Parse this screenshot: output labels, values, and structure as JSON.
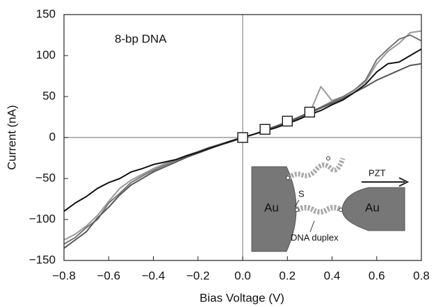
{
  "chart_data": {
    "type": "line",
    "x_label": "Bias Voltage (V)",
    "y_label": "Current (nA)",
    "annotation": "8-bp DNA",
    "inset": {
      "left": "Au",
      "right": "Au",
      "sulfur": "S",
      "duplex": "DNA duplex",
      "piezo": "PZT"
    },
    "x": [
      -0.8,
      -0.75,
      -0.7,
      -0.65,
      -0.6,
      -0.55,
      -0.5,
      -0.45,
      -0.4,
      -0.35,
      -0.3,
      -0.25,
      -0.2,
      -0.15,
      -0.1,
      -0.05,
      0,
      0.05,
      0.1,
      0.15,
      0.2,
      0.25,
      0.3,
      0.35,
      0.4,
      0.45,
      0.5,
      0.55,
      0.6,
      0.65,
      0.7,
      0.75,
      0.8
    ],
    "series": [
      {
        "color": "#999999",
        "values": [
          -125,
          -118,
          -108,
          -95,
          -78,
          -62,
          -52,
          -45,
          -38,
          -32,
          -27,
          -22,
          -17,
          -12,
          -8,
          -4,
          0,
          4,
          8,
          13,
          18,
          23,
          30,
          62,
          45,
          50,
          58,
          68,
          90,
          105,
          115,
          128,
          130
        ]
      },
      {
        "color": "#777777",
        "values": [
          -130,
          -122,
          -110,
          -100,
          -80,
          -68,
          -55,
          -47,
          -40,
          -34,
          -28,
          -23,
          -18,
          -13,
          -8,
          -4,
          0,
          4,
          9,
          14,
          19,
          25,
          31,
          37,
          44,
          50,
          58,
          70,
          95,
          108,
          120,
          125,
          118
        ]
      },
      {
        "color": "#555555",
        "values": [
          -135,
          -125,
          -115,
          -98,
          -85,
          -70,
          -58,
          -50,
          -42,
          -36,
          -30,
          -24,
          -19,
          -14,
          -9,
          -5,
          0,
          4,
          9,
          14,
          19,
          24,
          30,
          36,
          42,
          48,
          55,
          62,
          70,
          76,
          82,
          88,
          90
        ]
      },
      {
        "color": "#111111",
        "values": [
          -90,
          -80,
          -72,
          -62,
          -55,
          -50,
          -42,
          -38,
          -33,
          -30,
          -27,
          -22,
          -18,
          -13,
          -9,
          -4,
          0,
          4,
          8,
          12,
          17,
          22,
          28,
          33,
          40,
          46,
          55,
          65,
          80,
          90,
          92,
          100,
          108
        ]
      }
    ],
    "markers": {
      "x": [
        0,
        0.1,
        0.2,
        0.3
      ],
      "values": [
        0,
        10,
        20,
        31
      ]
    },
    "xlim": [
      -0.8,
      0.8
    ],
    "ylim": [
      -150,
      150
    ],
    "xticks": [
      {
        "value": -0.8,
        "label": "−0.8"
      },
      {
        "value": -0.6,
        "label": "−0.6"
      },
      {
        "value": -0.4,
        "label": "−0.4"
      },
      {
        "value": -0.2,
        "label": "−0.2"
      },
      {
        "value": 0,
        "label": "0.0"
      },
      0.2,
      0.4,
      0.6,
      0.8
    ],
    "yticks": [
      {
        "value": -150,
        "label": "−150"
      },
      {
        "value": -100,
        "label": "−100"
      },
      {
        "value": -50,
        "label": "−50"
      },
      0,
      50,
      100,
      150
    ],
    "zero_lines": true
  }
}
